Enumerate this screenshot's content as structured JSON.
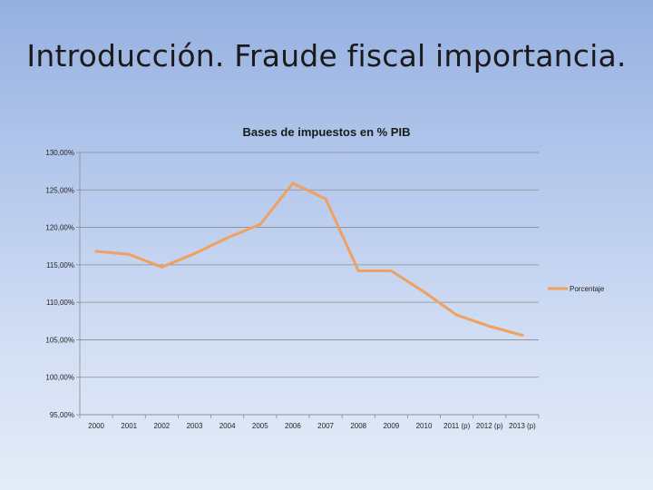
{
  "slide": {
    "title": "Introducción. Fraude fiscal importancia."
  },
  "chart_data": {
    "type": "line",
    "title": "Bases de impuestos en % PIB",
    "xlabel": "",
    "ylabel": "",
    "categories": [
      "2000",
      "2001",
      "2002",
      "2003",
      "2004",
      "2005",
      "2006",
      "2007",
      "2008",
      "2009",
      "2010",
      "2011 (p)",
      "2012 (p)",
      "2013 (p)"
    ],
    "series": [
      {
        "name": "Porcentaje",
        "values": [
          116.8,
          116.4,
          114.7,
          116.5,
          118.6,
          120.4,
          125.9,
          123.8,
          114.2,
          114.2,
          111.4,
          108.3,
          106.8,
          105.6
        ],
        "color": "#f0a060"
      }
    ],
    "ylim": [
      95,
      130
    ],
    "yticks": [
      "95,00%",
      "100,00%",
      "105,00%",
      "110,00%",
      "115,00%",
      "120,00%",
      "125,00%",
      "130,00%"
    ],
    "grid": true,
    "legend": "right"
  }
}
